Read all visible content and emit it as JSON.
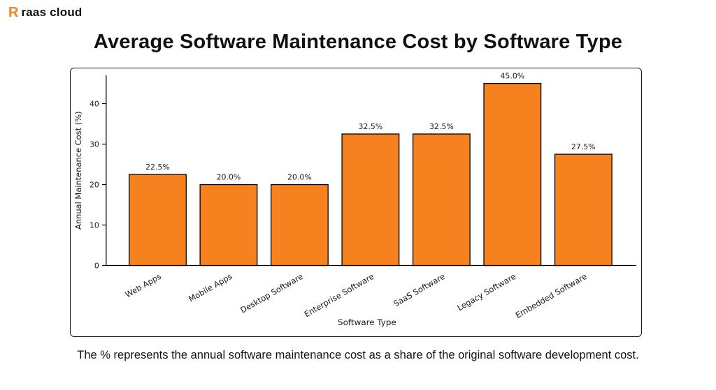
{
  "logo": {
    "mark": "R",
    "text": "raas cloud"
  },
  "page_title": "Average Software Maintenance Cost by Software Type",
  "footer_note": "The % represents the annual software maintenance cost as a share of the original software development cost.",
  "colors": {
    "bar_fill": "#F5821F",
    "bar_edge": "#000000",
    "axis": "#000000",
    "text": "#1a1a1a"
  },
  "chart_data": {
    "type": "bar",
    "title": "Average Software Maintenance Cost by Software Type",
    "categories": [
      "Web Apps",
      "Mobile Apps",
      "Desktop Software",
      "Enterprise Software",
      "SaaS Software",
      "Legacy Software",
      "Embedded Software"
    ],
    "values": [
      22.5,
      20.0,
      20.0,
      32.5,
      32.5,
      45.0,
      27.5
    ],
    "value_labels": [
      "22.5%",
      "20.0%",
      "20.0%",
      "32.5%",
      "32.5%",
      "45.0%",
      "27.5%"
    ],
    "xlabel": "Software Type",
    "ylabel": "Annual Maintenance Cost (%)",
    "yticks": [
      0,
      10,
      20,
      30,
      40
    ],
    "ytick_labels": [
      "0",
      "10",
      "20",
      "30",
      "40"
    ],
    "ylim": [
      0,
      47
    ],
    "grid": false,
    "legend_position": "none"
  }
}
